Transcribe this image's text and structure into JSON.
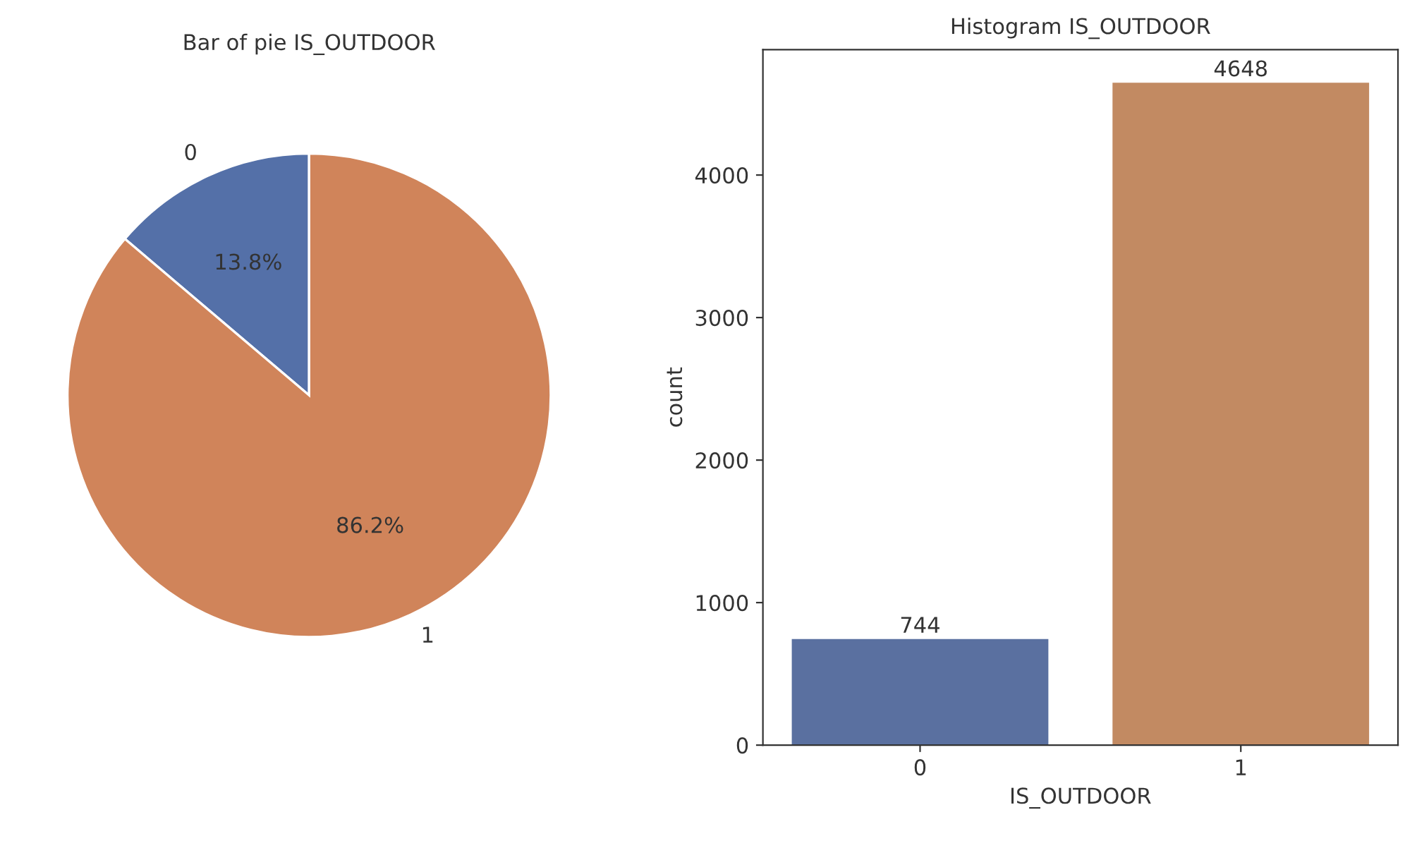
{
  "chart_data": [
    {
      "type": "pie",
      "title": "Bar of pie IS_OUTDOOR",
      "categories": [
        "0",
        "1"
      ],
      "values": [
        13.8,
        86.2
      ],
      "colors": [
        "#5470a8",
        "#d0845a"
      ],
      "value_labels": [
        "13.8%",
        "86.2%"
      ]
    },
    {
      "type": "bar",
      "title": "Histogram IS_OUTDOOR",
      "xlabel": "IS_OUTDOOR",
      "ylabel": "count",
      "categories": [
        "0",
        "1"
      ],
      "values": [
        744,
        4648
      ],
      "colors": [
        "#5a70a0",
        "#c28a62"
      ],
      "ylim": [
        0,
        4880
      ],
      "yticks": [
        0,
        1000,
        2000,
        3000,
        4000
      ],
      "data_labels": true,
      "grid": false
    }
  ]
}
